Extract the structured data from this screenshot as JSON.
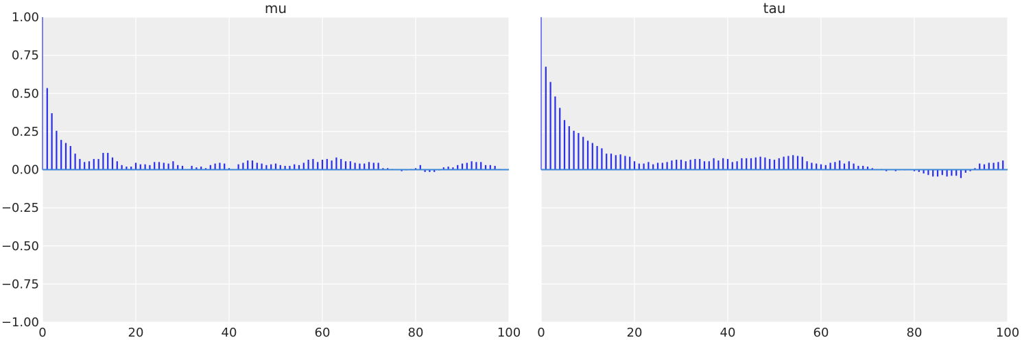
{
  "chart_data": [
    {
      "type": "bar",
      "title": "mu",
      "xlabel": "",
      "ylabel": "",
      "xlim": [
        0,
        100
      ],
      "ylim": [
        -1.0,
        1.0
      ],
      "grid": true,
      "xticks": [
        "0",
        "20",
        "40",
        "60",
        "80",
        "100"
      ],
      "yticks": [
        "1.00",
        "0.75",
        "0.50",
        "0.25",
        "0.00",
        "−0.25",
        "−0.50",
        "−0.75",
        "−1.00"
      ],
      "lags": [
        0,
        1,
        2,
        3,
        4,
        5,
        6,
        7,
        8,
        9,
        10,
        11,
        12,
        13,
        14,
        15,
        16,
        17,
        18,
        19,
        20,
        21,
        22,
        23,
        24,
        25,
        26,
        27,
        28,
        29,
        30,
        31,
        32,
        33,
        34,
        35,
        36,
        37,
        38,
        39,
        40,
        41,
        42,
        43,
        44,
        45,
        46,
        47,
        48,
        49,
        50,
        51,
        52,
        53,
        54,
        55,
        56,
        57,
        58,
        59,
        60,
        61,
        62,
        63,
        64,
        65,
        66,
        67,
        68,
        69,
        70,
        71,
        72,
        73,
        74,
        75,
        76,
        77,
        78,
        79,
        80,
        81,
        82,
        83,
        84,
        85,
        86,
        87,
        88,
        89,
        90,
        91,
        92,
        93,
        94,
        95,
        96,
        97,
        98,
        99
      ],
      "values": [
        1.0,
        0.535,
        0.37,
        0.255,
        0.195,
        0.175,
        0.155,
        0.105,
        0.07,
        0.05,
        0.055,
        0.07,
        0.07,
        0.11,
        0.11,
        0.08,
        0.055,
        0.03,
        0.02,
        0.02,
        0.045,
        0.035,
        0.035,
        0.03,
        0.05,
        0.05,
        0.045,
        0.04,
        0.055,
        0.03,
        0.025,
        0.0,
        0.025,
        0.015,
        0.02,
        0.01,
        0.03,
        0.04,
        0.045,
        0.04,
        0.01,
        0.0,
        0.035,
        0.045,
        0.06,
        0.06,
        0.045,
        0.04,
        0.03,
        0.035,
        0.04,
        0.03,
        0.025,
        0.025,
        0.035,
        0.03,
        0.045,
        0.065,
        0.07,
        0.05,
        0.065,
        0.07,
        0.06,
        0.08,
        0.07,
        0.055,
        0.055,
        0.045,
        0.04,
        0.04,
        0.05,
        0.045,
        0.045,
        0.01,
        0.01,
        0.005,
        0.0,
        -0.01,
        -0.005,
        0.005,
        0.01,
        0.03,
        -0.015,
        -0.015,
        -0.015,
        -0.005,
        0.015,
        0.02,
        0.015,
        0.03,
        0.04,
        0.045,
        0.055,
        0.05,
        0.05,
        0.03,
        0.03,
        0.025,
        0.005,
        0.0
      ]
    },
    {
      "type": "bar",
      "title": "tau",
      "xlabel": "",
      "ylabel": "",
      "xlim": [
        0,
        100
      ],
      "ylim": [
        -1.0,
        1.0
      ],
      "grid": true,
      "xticks": [
        "0",
        "20",
        "40",
        "60",
        "80",
        "100"
      ],
      "yticks": [],
      "lags": [
        0,
        1,
        2,
        3,
        4,
        5,
        6,
        7,
        8,
        9,
        10,
        11,
        12,
        13,
        14,
        15,
        16,
        17,
        18,
        19,
        20,
        21,
        22,
        23,
        24,
        25,
        26,
        27,
        28,
        29,
        30,
        31,
        32,
        33,
        34,
        35,
        36,
        37,
        38,
        39,
        40,
        41,
        42,
        43,
        44,
        45,
        46,
        47,
        48,
        49,
        50,
        51,
        52,
        53,
        54,
        55,
        56,
        57,
        58,
        59,
        60,
        61,
        62,
        63,
        64,
        65,
        66,
        67,
        68,
        69,
        70,
        71,
        72,
        73,
        74,
        75,
        76,
        77,
        78,
        79,
        80,
        81,
        82,
        83,
        84,
        85,
        86,
        87,
        88,
        89,
        90,
        91,
        92,
        93,
        94,
        95,
        96,
        97,
        98,
        99
      ],
      "values": [
        1.0,
        0.675,
        0.575,
        0.48,
        0.405,
        0.325,
        0.285,
        0.255,
        0.24,
        0.215,
        0.19,
        0.175,
        0.155,
        0.14,
        0.105,
        0.105,
        0.095,
        0.1,
        0.09,
        0.085,
        0.055,
        0.04,
        0.04,
        0.05,
        0.035,
        0.045,
        0.045,
        0.05,
        0.06,
        0.065,
        0.065,
        0.055,
        0.065,
        0.07,
        0.07,
        0.055,
        0.055,
        0.075,
        0.06,
        0.075,
        0.07,
        0.05,
        0.055,
        0.075,
        0.075,
        0.075,
        0.08,
        0.085,
        0.08,
        0.07,
        0.065,
        0.075,
        0.085,
        0.09,
        0.095,
        0.09,
        0.085,
        0.055,
        0.045,
        0.04,
        0.035,
        0.03,
        0.045,
        0.05,
        0.06,
        0.04,
        0.055,
        0.04,
        0.025,
        0.025,
        0.02,
        0.01,
        0.0,
        0.005,
        -0.01,
        0.0,
        -0.01,
        0.0,
        -0.005,
        0.0,
        -0.01,
        -0.015,
        -0.025,
        -0.035,
        -0.045,
        -0.045,
        -0.035,
        -0.045,
        -0.04,
        -0.04,
        -0.055,
        -0.02,
        -0.01,
        0.01,
        0.04,
        0.035,
        0.045,
        0.045,
        0.05,
        0.06
      ]
    }
  ]
}
